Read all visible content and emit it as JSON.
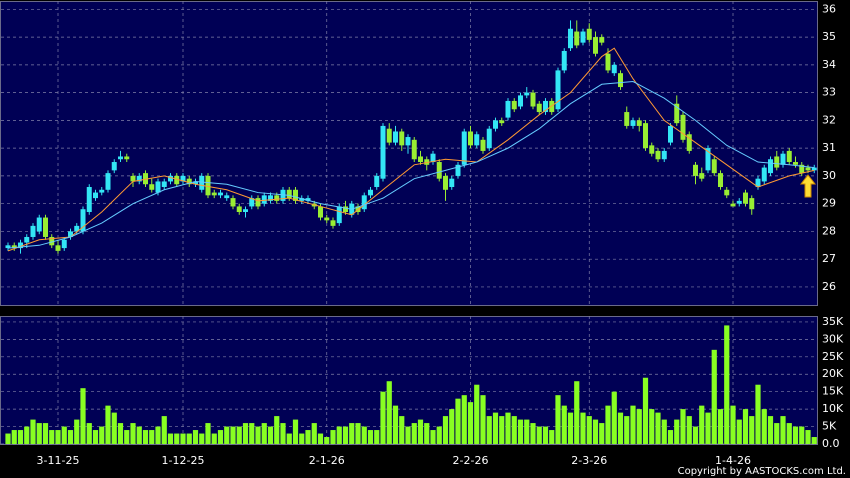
{
  "chart_data": {
    "type": "candlestick",
    "up_color": "#33e6f5",
    "down_color": "#99ee33",
    "ohlc": [
      [
        27.4,
        27.6,
        27.3,
        27.5
      ],
      [
        27.5,
        27.6,
        27.3,
        27.4
      ],
      [
        27.4,
        27.7,
        27.2,
        27.6
      ],
      [
        27.6,
        27.9,
        27.4,
        27.8
      ],
      [
        27.8,
        28.3,
        27.7,
        28.2
      ],
      [
        28.0,
        28.6,
        27.9,
        28.5
      ],
      [
        28.5,
        28.6,
        27.7,
        27.8
      ],
      [
        27.8,
        27.9,
        27.4,
        27.5
      ],
      [
        27.5,
        27.7,
        27.2,
        27.3
      ],
      [
        27.4,
        27.8,
        27.3,
        27.7
      ],
      [
        27.8,
        28.1,
        27.7,
        28.0
      ],
      [
        28.0,
        28.3,
        27.9,
        28.2
      ],
      [
        28.0,
        28.9,
        27.9,
        28.8
      ],
      [
        28.7,
        29.7,
        28.6,
        29.6
      ],
      [
        29.2,
        29.5,
        29.1,
        29.4
      ],
      [
        29.4,
        29.6,
        29.3,
        29.5
      ],
      [
        29.5,
        30.2,
        29.4,
        30.1
      ],
      [
        30.2,
        30.6,
        30.1,
        30.5
      ],
      [
        30.6,
        30.9,
        30.5,
        30.7
      ],
      [
        30.7,
        30.8,
        30.5,
        30.6
      ],
      [
        30.0,
        30.1,
        29.6,
        29.8
      ],
      [
        29.8,
        30.1,
        29.7,
        30.0
      ],
      [
        30.1,
        30.2,
        29.6,
        29.7
      ],
      [
        29.7,
        29.9,
        29.4,
        29.5
      ],
      [
        29.4,
        29.9,
        29.3,
        29.8
      ],
      [
        29.6,
        29.9,
        29.5,
        29.8
      ],
      [
        29.8,
        30.1,
        29.7,
        30.0
      ],
      [
        30.0,
        30.1,
        29.6,
        29.7
      ],
      [
        29.8,
        30.1,
        29.7,
        30.0
      ],
      [
        29.9,
        30.0,
        29.6,
        29.7
      ],
      [
        29.7,
        29.9,
        29.6,
        29.8
      ],
      [
        29.5,
        30.1,
        29.4,
        30.0
      ],
      [
        30.0,
        30.1,
        29.2,
        29.3
      ],
      [
        29.4,
        29.5,
        29.2,
        29.3
      ],
      [
        29.3,
        29.5,
        29.2,
        29.4
      ],
      [
        29.2,
        29.4,
        29.1,
        29.3
      ],
      [
        29.2,
        29.3,
        28.8,
        28.9
      ],
      [
        28.9,
        29.0,
        28.6,
        28.7
      ],
      [
        28.7,
        28.9,
        28.5,
        28.8
      ],
      [
        28.9,
        29.3,
        28.8,
        29.2
      ],
      [
        29.2,
        29.3,
        28.8,
        28.9
      ],
      [
        29.0,
        29.4,
        28.9,
        29.3
      ],
      [
        29.1,
        29.4,
        29.0,
        29.3
      ],
      [
        29.3,
        29.4,
        29.0,
        29.1
      ],
      [
        29.1,
        29.6,
        29.0,
        29.5
      ],
      [
        29.5,
        29.6,
        29.1,
        29.2
      ],
      [
        29.5,
        29.6,
        29.0,
        29.1
      ],
      [
        29.1,
        29.3,
        29.0,
        29.2
      ],
      [
        29.1,
        29.3,
        29.0,
        29.2
      ],
      [
        29.0,
        29.1,
        28.8,
        28.9
      ],
      [
        28.9,
        29.0,
        28.4,
        28.5
      ],
      [
        28.5,
        28.6,
        28.3,
        28.4
      ],
      [
        28.4,
        28.5,
        28.1,
        28.2
      ],
      [
        28.3,
        29.0,
        28.2,
        28.9
      ],
      [
        28.9,
        29.1,
        28.6,
        28.7
      ],
      [
        28.6,
        29.1,
        28.5,
        29.0
      ],
      [
        28.9,
        29.0,
        28.6,
        28.7
      ],
      [
        28.8,
        29.4,
        28.7,
        29.3
      ],
      [
        29.3,
        29.6,
        29.2,
        29.5
      ],
      [
        29.6,
        30.1,
        29.5,
        30.0
      ],
      [
        29.9,
        31.9,
        29.8,
        31.8
      ],
      [
        31.7,
        31.9,
        31.1,
        31.2
      ],
      [
        31.2,
        31.8,
        31.1,
        31.6
      ],
      [
        31.6,
        31.7,
        30.9,
        31.1
      ],
      [
        31.1,
        31.5,
        30.8,
        31.4
      ],
      [
        31.3,
        31.4,
        30.5,
        30.6
      ],
      [
        30.7,
        30.9,
        30.4,
        30.5
      ],
      [
        30.6,
        30.7,
        30.2,
        30.4
      ],
      [
        30.5,
        30.9,
        30.4,
        30.8
      ],
      [
        30.5,
        30.6,
        29.8,
        29.9
      ],
      [
        30.0,
        30.1,
        29.1,
        29.5
      ],
      [
        29.6,
        30.0,
        29.5,
        29.9
      ],
      [
        30.0,
        30.5,
        29.9,
        30.4
      ],
      [
        30.4,
        31.7,
        30.3,
        31.6
      ],
      [
        31.6,
        31.8,
        31.0,
        31.1
      ],
      [
        31.1,
        31.6,
        31.0,
        31.5
      ],
      [
        31.3,
        31.4,
        30.8,
        30.9
      ],
      [
        31.0,
        31.8,
        30.9,
        31.7
      ],
      [
        31.7,
        32.1,
        31.6,
        32.0
      ],
      [
        32.0,
        32.1,
        31.8,
        31.9
      ],
      [
        32.1,
        32.8,
        32.0,
        32.7
      ],
      [
        32.7,
        32.8,
        32.3,
        32.4
      ],
      [
        32.5,
        33.0,
        32.4,
        32.9
      ],
      [
        32.9,
        33.2,
        32.8,
        33.0
      ],
      [
        33.0,
        33.1,
        32.4,
        32.5
      ],
      [
        32.6,
        32.7,
        32.2,
        32.3
      ],
      [
        32.3,
        32.8,
        32.2,
        32.7
      ],
      [
        32.7,
        32.8,
        32.2,
        32.3
      ],
      [
        32.4,
        33.9,
        32.3,
        33.8
      ],
      [
        33.8,
        34.6,
        33.7,
        34.5
      ],
      [
        34.6,
        35.6,
        34.5,
        35.3
      ],
      [
        35.2,
        35.6,
        34.6,
        34.7
      ],
      [
        34.8,
        35.3,
        34.7,
        35.2
      ],
      [
        35.3,
        35.5,
        34.8,
        34.9
      ],
      [
        35.0,
        35.2,
        34.3,
        34.4
      ],
      [
        35.0,
        35.1,
        34.7,
        34.8
      ],
      [
        34.4,
        34.6,
        33.7,
        33.8
      ],
      [
        33.7,
        34.1,
        33.6,
        34.0
      ],
      [
        33.7,
        33.8,
        33.1,
        33.2
      ],
      [
        32.3,
        32.5,
        31.7,
        31.8
      ],
      [
        31.8,
        32.1,
        31.7,
        32.0
      ],
      [
        32.0,
        32.1,
        31.6,
        31.8
      ],
      [
        31.9,
        32.0,
        30.9,
        31.0
      ],
      [
        31.1,
        31.2,
        30.7,
        30.8
      ],
      [
        30.9,
        31.0,
        30.5,
        30.6
      ],
      [
        30.6,
        31.0,
        30.5,
        30.9
      ],
      [
        31.2,
        31.9,
        31.1,
        31.8
      ],
      [
        32.6,
        32.9,
        31.8,
        31.9
      ],
      [
        32.2,
        32.3,
        31.2,
        31.3
      ],
      [
        31.5,
        31.6,
        30.8,
        30.9
      ],
      [
        30.4,
        30.5,
        29.7,
        30.0
      ],
      [
        30.1,
        30.3,
        29.8,
        29.9
      ],
      [
        30.2,
        31.1,
        30.1,
        31.0
      ],
      [
        30.6,
        30.7,
        30.0,
        30.1
      ],
      [
        30.1,
        30.2,
        29.5,
        29.6
      ],
      [
        29.5,
        29.6,
        29.2,
        29.3
      ],
      [
        29.0,
        29.1,
        28.9,
        28.9
      ],
      [
        29.0,
        29.2,
        28.9,
        29.1
      ],
      [
        29.4,
        29.5,
        28.9,
        29.0
      ],
      [
        29.2,
        29.3,
        28.6,
        28.8
      ],
      [
        29.6,
        30.0,
        29.5,
        29.9
      ],
      [
        29.8,
        30.4,
        29.7,
        30.3
      ],
      [
        30.1,
        30.7,
        30.0,
        30.6
      ],
      [
        30.7,
        30.9,
        30.2,
        30.3
      ],
      [
        30.4,
        30.9,
        30.3,
        30.8
      ],
      [
        30.9,
        31.0,
        30.4,
        30.5
      ],
      [
        30.5,
        30.7,
        30.3,
        30.4
      ],
      [
        30.4,
        30.5,
        30.0,
        30.1
      ],
      [
        30.3,
        30.4,
        30.1,
        30.2
      ],
      [
        30.2,
        30.4,
        30.1,
        30.3
      ]
    ],
    "lines": [
      {
        "color": "#ff9933",
        "x": [
          0,
          5,
          10,
          15,
          20,
          25,
          30,
          35,
          40,
          45,
          50,
          55,
          60,
          65,
          70,
          75,
          80,
          85,
          90,
          95,
          97,
          100,
          105,
          110,
          115,
          120,
          125,
          129
        ],
        "values": [
          27.3,
          27.7,
          27.8,
          28.7,
          29.8,
          30.0,
          29.7,
          29.5,
          29.1,
          29.2,
          28.9,
          28.6,
          29.5,
          30.4,
          30.6,
          30.5,
          31.3,
          32.2,
          33.0,
          34.3,
          34.6,
          33.5,
          32.0,
          31.2,
          30.4,
          29.6,
          30.0,
          30.2
        ]
      },
      {
        "color": "#66ccff",
        "x": [
          0,
          5,
          10,
          15,
          20,
          25,
          30,
          35,
          40,
          45,
          50,
          55,
          60,
          65,
          70,
          75,
          80,
          85,
          90,
          95,
          100,
          105,
          110,
          115,
          120,
          125,
          129
        ],
        "values": [
          27.4,
          27.5,
          27.8,
          28.3,
          29.0,
          29.5,
          29.8,
          29.7,
          29.4,
          29.3,
          29.0,
          28.8,
          29.2,
          29.9,
          30.2,
          30.5,
          31.0,
          31.7,
          32.6,
          33.3,
          33.4,
          32.8,
          32.0,
          31.1,
          30.5,
          30.4,
          30.3
        ]
      }
    ],
    "ylim": [
      25.35,
      36.3
    ],
    "yticks": [
      26,
      27,
      28,
      29,
      30,
      31,
      32,
      33,
      34,
      35,
      36
    ],
    "xticks": [
      {
        "value": 8,
        "label": "3-11-25"
      },
      {
        "value": 28,
        "label": "1-12-25"
      },
      {
        "value": 51,
        "label": "2-1-26"
      },
      {
        "value": 74,
        "label": "2-2-26"
      },
      {
        "value": 93,
        "label": "2-3-26"
      },
      {
        "value": 116,
        "label": "1-4-26"
      }
    ],
    "grid": true,
    "volume": {
      "type": "bar",
      "color": "#88ff22",
      "values": [
        3000,
        4000,
        4000,
        5000,
        7000,
        6000,
        6000,
        4000,
        4000,
        5000,
        4000,
        7000,
        16000,
        6000,
        4000,
        5000,
        11000,
        9000,
        6000,
        4000,
        6000,
        5000,
        4000,
        4000,
        5000,
        8000,
        3000,
        3000,
        3000,
        3000,
        4000,
        3000,
        6000,
        3000,
        4000,
        5000,
        5000,
        5000,
        6000,
        6000,
        5000,
        6000,
        5000,
        8000,
        6000,
        3000,
        7000,
        3000,
        4000,
        6000,
        3000,
        2000,
        4000,
        5000,
        5000,
        6000,
        6000,
        5000,
        4000,
        4000,
        15000,
        18000,
        11000,
        8000,
        5000,
        6000,
        7000,
        6000,
        4000,
        5000,
        8000,
        10000,
        13000,
        14000,
        12000,
        17000,
        14000,
        8000,
        9000,
        8000,
        9000,
        8000,
        7000,
        7000,
        6000,
        5000,
        5000,
        4000,
        14000,
        11000,
        9000,
        18000,
        9000,
        8000,
        7000,
        6000,
        11000,
        15000,
        9000,
        8000,
        11000,
        10000,
        19000,
        10000,
        9000,
        7000,
        4000,
        7000,
        10000,
        8000,
        5000,
        11000,
        9000,
        27000,
        10000,
        34000,
        11000,
        7000,
        10000,
        8000,
        17000,
        10000,
        8000,
        6000,
        8000,
        6000,
        5000,
        5000,
        4000,
        2000
      ],
      "ylim": [
        0,
        36700
      ],
      "yticks": [
        {
          "value": 0,
          "label": "0.0"
        },
        {
          "value": 5000,
          "label": "5K"
        },
        {
          "value": 10000,
          "label": "10K"
        },
        {
          "value": 15000,
          "label": "15K"
        },
        {
          "value": 20000,
          "label": "20K"
        },
        {
          "value": 25000,
          "label": "25K"
        },
        {
          "value": 30000,
          "label": "30K"
        },
        {
          "value": 35000,
          "label": "35K"
        }
      ]
    },
    "footnote": "Copyright by AASTOCKS.com Ltd."
  }
}
